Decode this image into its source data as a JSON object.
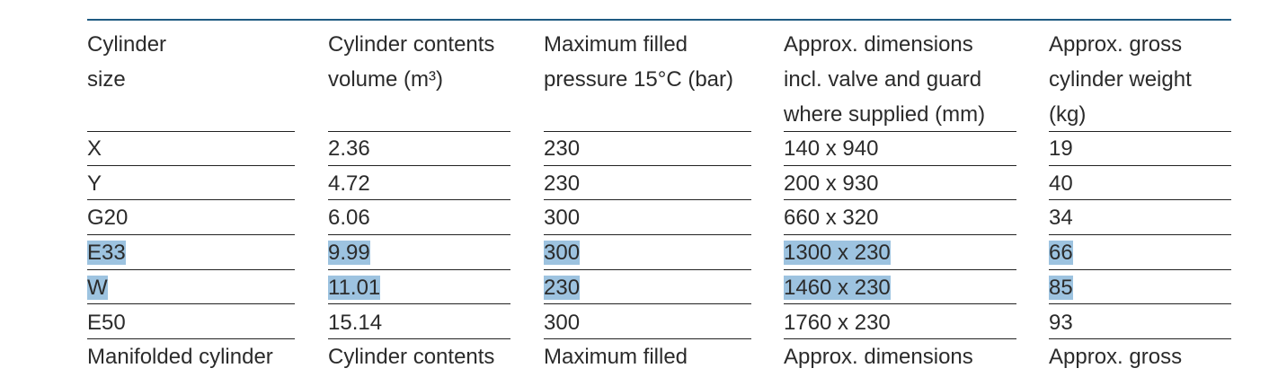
{
  "table": {
    "header": [
      [
        "Cylinder",
        "size"
      ],
      [
        "Cylinder contents",
        "volume (m³)"
      ],
      [
        "Maximum filled",
        "pressure 15°C (bar)"
      ],
      [
        "Approx. dimensions",
        "incl. valve and guard",
        "where supplied (mm)"
      ],
      [
        "Approx. gross",
        "cylinder weight",
        "(kg)"
      ]
    ],
    "rows": [
      [
        "X",
        "2.36",
        "230",
        "140 x 940",
        "19"
      ],
      [
        "Y",
        "4.72",
        "230",
        "200 x 930",
        "40"
      ],
      [
        "G20",
        "6.06",
        "300",
        "660 x 320",
        "34"
      ],
      [
        "E33",
        "9.99",
        "300",
        "1300 x 230",
        "66"
      ],
      [
        "W",
        "11.01",
        "230",
        "1460 x 230",
        "85"
      ],
      [
        "E50",
        "15.14",
        "300",
        "1760 x 230",
        "93"
      ]
    ],
    "selected_rows": [
      3,
      4
    ],
    "next_header": [
      "Manifolded cylinder",
      "Cylinder contents",
      "Maximum filled",
      "Approx. dimensions",
      "Approx. gross"
    ]
  }
}
